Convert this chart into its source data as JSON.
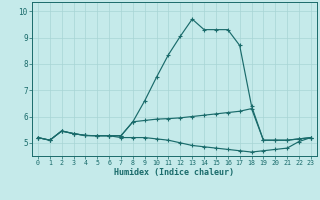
{
  "xlabel": "Humidex (Indice chaleur)",
  "xlim": [
    -0.5,
    23.5
  ],
  "ylim": [
    4.5,
    10.35
  ],
  "yticks": [
    5,
    6,
    7,
    8,
    9,
    10
  ],
  "xticks": [
    0,
    1,
    2,
    3,
    4,
    5,
    6,
    7,
    8,
    9,
    10,
    11,
    12,
    13,
    14,
    15,
    16,
    17,
    18,
    19,
    20,
    21,
    22,
    23
  ],
  "bg_color": "#c5eaea",
  "grid_color": "#a8d5d5",
  "line_color": "#1a6b6b",
  "curves": [
    [
      5.2,
      5.1,
      5.45,
      5.35,
      5.28,
      5.27,
      5.27,
      5.27,
      5.8,
      6.6,
      7.5,
      8.35,
      9.05,
      9.7,
      9.3,
      9.3,
      9.3,
      8.7,
      6.4,
      5.1,
      5.1,
      5.1,
      5.15,
      5.2
    ],
    [
      5.2,
      5.1,
      5.45,
      5.35,
      5.28,
      5.27,
      5.27,
      5.27,
      5.8,
      5.85,
      5.9,
      5.92,
      5.95,
      6.0,
      6.05,
      6.1,
      6.15,
      6.2,
      6.3,
      5.1,
      5.1,
      5.1,
      5.15,
      5.2
    ],
    [
      5.2,
      5.1,
      5.45,
      5.35,
      5.28,
      5.27,
      5.27,
      5.2,
      5.2,
      5.2,
      5.15,
      5.1,
      5.0,
      4.9,
      4.85,
      4.8,
      4.75,
      4.7,
      4.65,
      4.7,
      4.75,
      4.8,
      5.05,
      5.2
    ]
  ]
}
